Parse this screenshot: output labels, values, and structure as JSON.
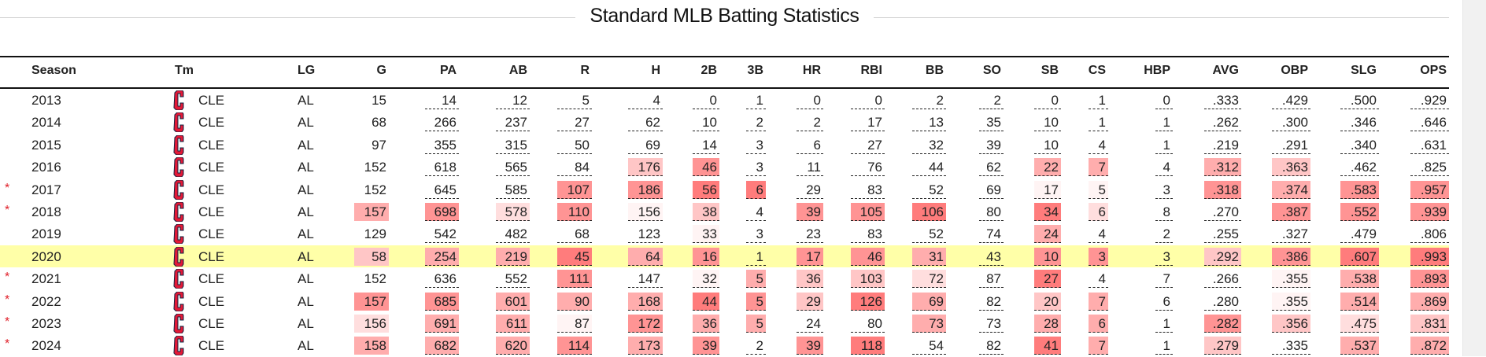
{
  "title": "Standard MLB Batting Statistics",
  "columns": [
    "Season",
    "Tm",
    "LG",
    "G",
    "PA",
    "AB",
    "R",
    "H",
    "2B",
    "3B",
    "HR",
    "RBI",
    "BB",
    "SO",
    "SB",
    "CS",
    "HBP",
    "AVG",
    "OBP",
    "SLG",
    "OPS"
  ],
  "highlight_color": "#ffffa8",
  "heat_colors": [
    "transparent",
    "#fff4f4",
    "#ffdede",
    "#ffc6c6",
    "#ffadad",
    "#ff9494",
    "#ff7c7c"
  ],
  "team_logo_icon": "cleveland-c-logo",
  "rows": [
    {
      "season": "2013",
      "star": "",
      "tm": "CLE",
      "lg": "AL",
      "stats": [
        "15",
        "14",
        "12",
        "5",
        "4",
        "0",
        "1",
        "0",
        "0",
        "2",
        "2",
        "0",
        "1",
        "0",
        ".333",
        ".429",
        ".500",
        ".929"
      ],
      "heat": [
        0,
        0,
        0,
        0,
        0,
        0,
        0,
        0,
        0,
        0,
        0,
        0,
        0,
        0,
        0,
        0,
        0,
        0
      ]
    },
    {
      "season": "2014",
      "star": "",
      "tm": "CLE",
      "lg": "AL",
      "stats": [
        "68",
        "266",
        "237",
        "27",
        "62",
        "10",
        "2",
        "2",
        "17",
        "13",
        "35",
        "10",
        "1",
        "1",
        ".262",
        ".300",
        ".346",
        ".646"
      ],
      "heat": [
        0,
        0,
        0,
        0,
        0,
        0,
        0,
        0,
        0,
        0,
        0,
        0,
        0,
        0,
        0,
        0,
        0,
        0
      ]
    },
    {
      "season": "2015",
      "star": "",
      "tm": "CLE",
      "lg": "AL",
      "stats": [
        "97",
        "355",
        "315",
        "50",
        "69",
        "14",
        "3",
        "6",
        "27",
        "32",
        "39",
        "10",
        "4",
        "1",
        ".219",
        ".291",
        ".340",
        ".631"
      ],
      "heat": [
        0,
        0,
        0,
        0,
        0,
        0,
        0,
        0,
        0,
        0,
        0,
        0,
        0,
        0,
        0,
        0,
        0,
        0
      ]
    },
    {
      "season": "2016",
      "star": "",
      "tm": "CLE",
      "lg": "AL",
      "stats": [
        "152",
        "618",
        "565",
        "84",
        "176",
        "46",
        "3",
        "11",
        "76",
        "44",
        "62",
        "22",
        "7",
        "4",
        ".312",
        ".363",
        ".462",
        ".825"
      ],
      "heat": [
        0,
        0,
        0,
        0,
        3,
        5,
        0,
        0,
        0,
        0,
        0,
        4,
        4,
        0,
        4,
        3,
        0,
        0
      ]
    },
    {
      "season": "2017",
      "star": "*",
      "tm": "CLE",
      "lg": "AL",
      "stats": [
        "152",
        "645",
        "585",
        "107",
        "186",
        "56",
        "6",
        "29",
        "83",
        "52",
        "69",
        "17",
        "5",
        "3",
        ".318",
        ".374",
        ".583",
        ".957"
      ],
      "heat": [
        0,
        0,
        0,
        5,
        5,
        6,
        6,
        0,
        0,
        0,
        0,
        1,
        1,
        0,
        5,
        4,
        5,
        5
      ]
    },
    {
      "season": "2018",
      "star": "*",
      "tm": "CLE",
      "lg": "AL",
      "stats": [
        "157",
        "698",
        "578",
        "110",
        "156",
        "38",
        "4",
        "39",
        "105",
        "106",
        "80",
        "34",
        "6",
        "8",
        ".270",
        ".387",
        ".552",
        ".939"
      ],
      "heat": [
        4,
        5,
        2,
        5,
        1,
        3,
        0,
        5,
        5,
        6,
        0,
        6,
        2,
        0,
        0,
        5,
        5,
        5
      ]
    },
    {
      "season": "2019",
      "star": "",
      "tm": "CLE",
      "lg": "AL",
      "stats": [
        "129",
        "542",
        "482",
        "68",
        "123",
        "33",
        "3",
        "23",
        "83",
        "52",
        "74",
        "24",
        "4",
        "2",
        ".255",
        ".327",
        ".479",
        ".806"
      ],
      "heat": [
        0,
        0,
        0,
        0,
        0,
        1,
        0,
        0,
        0,
        0,
        0,
        4,
        0,
        0,
        0,
        0,
        0,
        0
      ]
    },
    {
      "season": "2020",
      "star": "",
      "tm": "CLE",
      "lg": "AL",
      "highlight": true,
      "stats": [
        "58",
        "254",
        "219",
        "45",
        "64",
        "16",
        "1",
        "17",
        "46",
        "31",
        "43",
        "10",
        "3",
        "3",
        ".292",
        ".386",
        ".607",
        ".993"
      ],
      "heat": [
        3,
        4,
        4,
        6,
        4,
        5,
        0,
        5,
        5,
        4,
        0,
        5,
        5,
        0,
        3,
        5,
        6,
        6
      ]
    },
    {
      "season": "2021",
      "star": "*",
      "tm": "CLE",
      "lg": "AL",
      "stats": [
        "152",
        "636",
        "552",
        "111",
        "147",
        "32",
        "5",
        "36",
        "103",
        "72",
        "87",
        "27",
        "4",
        "7",
        ".266",
        ".355",
        ".538",
        ".893"
      ],
      "heat": [
        0,
        0,
        0,
        5,
        0,
        1,
        4,
        3,
        3,
        2,
        0,
        6,
        0,
        0,
        0,
        1,
        4,
        5
      ]
    },
    {
      "season": "2022",
      "star": "*",
      "tm": "CLE",
      "lg": "AL",
      "stats": [
        "157",
        "685",
        "601",
        "90",
        "168",
        "44",
        "5",
        "29",
        "126",
        "69",
        "82",
        "20",
        "7",
        "6",
        ".280",
        ".355",
        ".514",
        ".869"
      ],
      "heat": [
        5,
        5,
        4,
        4,
        4,
        6,
        5,
        3,
        6,
        4,
        0,
        3,
        4,
        0,
        0,
        1,
        4,
        4
      ]
    },
    {
      "season": "2023",
      "star": "*",
      "tm": "CLE",
      "lg": "AL",
      "stats": [
        "156",
        "691",
        "611",
        "87",
        "172",
        "36",
        "5",
        "24",
        "80",
        "73",
        "73",
        "28",
        "6",
        "1",
        ".282",
        ".356",
        ".475",
        ".831"
      ],
      "heat": [
        2,
        4,
        4,
        1,
        5,
        4,
        4,
        0,
        0,
        4,
        0,
        4,
        4,
        0,
        5,
        3,
        2,
        3
      ]
    },
    {
      "season": "2024",
      "star": "*",
      "tm": "CLE",
      "lg": "AL",
      "stats": [
        "158",
        "682",
        "620",
        "114",
        "173",
        "39",
        "2",
        "39",
        "118",
        "54",
        "82",
        "41",
        "7",
        "1",
        ".279",
        ".335",
        ".537",
        ".872"
      ],
      "heat": [
        4,
        4,
        4,
        5,
        4,
        5,
        0,
        5,
        6,
        0,
        0,
        6,
        4,
        0,
        3,
        0,
        4,
        4
      ]
    }
  ]
}
